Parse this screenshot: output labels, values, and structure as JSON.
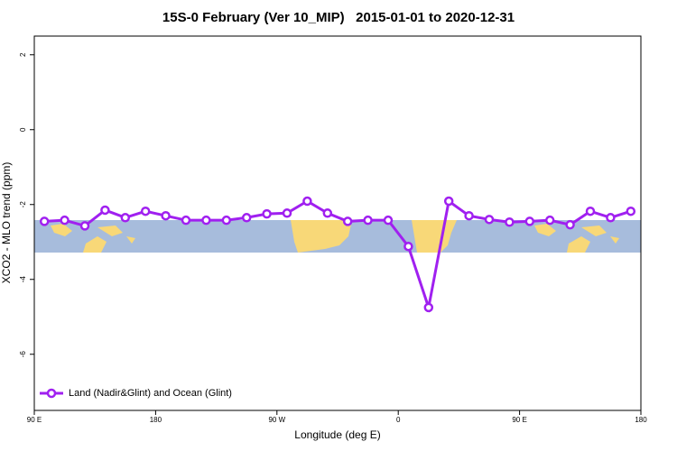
{
  "chart_data": {
    "type": "line",
    "title": "15S-0 February (Ver 10_MIP)   2015-01-01 to 2020-12-31",
    "xlabel": "Longitude (deg E)",
    "ylabel": "XCO2 - MLO trend (ppm)",
    "xlim": [
      90,
      540
    ],
    "ylim": [
      -7.5,
      2.5
    ],
    "xticks": [
      {
        "value": 90,
        "label": "90 E"
      },
      180,
      {
        "value": 270,
        "label": "90 W"
      },
      {
        "value": 360,
        "label": "0"
      },
      {
        "value": 450,
        "label": "90 E"
      },
      {
        "value": 540,
        "label": "180"
      }
    ],
    "yticks": [
      2,
      0,
      -2,
      -4,
      -6
    ],
    "legend": "bottom-left",
    "x": [
      97.5,
      112.5,
      127.5,
      142.5,
      157.5,
      172.5,
      187.5,
      202.5,
      217.5,
      232.5,
      247.5,
      262.5,
      277.5,
      292.5,
      307.5,
      322.5,
      337.5,
      352.5,
      367.5,
      382.5,
      397.5,
      412.5,
      427.5,
      442.5,
      457.5,
      472.5,
      487.5,
      502.5,
      517.5,
      532.5
    ],
    "series": [
      {
        "name": "Land (Nadir&Glint) and Ocean (Glint)",
        "color": "#a020f0",
        "values": [
          -2.45,
          -2.42,
          -2.57,
          -2.15,
          -2.35,
          -2.18,
          -2.3,
          -2.42,
          -2.42,
          -2.42,
          -2.35,
          -2.25,
          -2.23,
          -1.91,
          -2.23,
          -2.45,
          -2.42,
          -2.42,
          -3.12,
          -4.75,
          -1.91,
          -2.3,
          -2.4,
          -2.47,
          -2.45,
          -2.42,
          -2.54,
          -2.18,
          -2.35,
          -2.18
        ]
      }
    ]
  }
}
